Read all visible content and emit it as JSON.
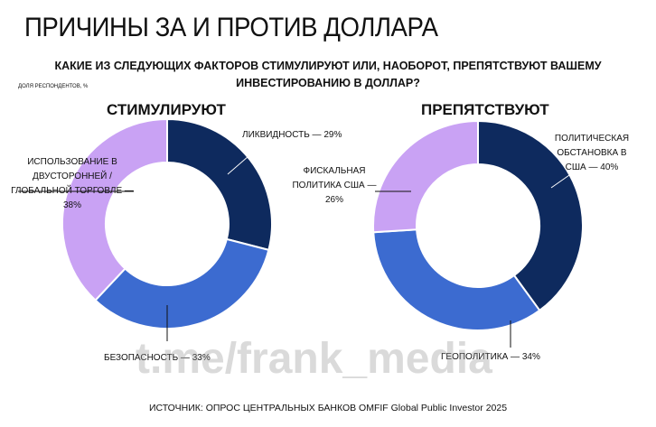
{
  "title": "ПРИЧИНЫ ЗА И ПРОТИВ ДОЛЛАРА",
  "question": "КАКИЕ ИЗ СЛЕДУЮЩИХ ФАКТОРОВ СТИМУЛИРУЮТ ИЛИ, НАОБОРОТ, ПРЕПЯТСТВУЮТ ВАШЕМУ ИНВЕСТИРОВАНИЮ В ДОЛЛАР?",
  "unit": "ДОЛЯ РЕСПОНДЕНТОВ, %",
  "watermark": "t.me/frank_media",
  "source": "ИСТОЧНИК: ОПРОС ЦЕНТРАЛЬНЫХ БАНКОВ OMFIF Global Public Investor 2025",
  "colors": {
    "dark": "#0e2a5e",
    "blue": "#3c6bd0",
    "lavender": "#c9a2f4"
  },
  "chart_data": [
    {
      "type": "pie",
      "title": "СТИМУЛИРУЮТ",
      "categories": [
        "ЛИКВИДНОСТЬ",
        "БЕЗОПАСНОСТЬ",
        "ИСПОЛЬЗОВАНИЕ В ДВУСТОРОННЕЙ / ГЛОБАЛЬНОЙ ТОРГОВЛЕ"
      ],
      "values": [
        29,
        33,
        38
      ],
      "labels": [
        "ЛИКВИДНОСТЬ — 29%",
        "БЕЗОПАСНОСТЬ — 33%",
        "ИСПОЛЬЗОВАНИЕ В ДВУСТОРОННЕЙ / ГЛОБАЛЬНОЙ ТОРГОВЛЕ — 38%"
      ]
    },
    {
      "type": "pie",
      "title": "ПРЕПЯТСТВУЮТ",
      "categories": [
        "ПОЛИТИЧЕСКАЯ ОБСТАНОВКА В США",
        "ГЕОПОЛИТИКА",
        "ФИСКАЛЬНАЯ ПОЛИТИКА США"
      ],
      "values": [
        40,
        34,
        26
      ],
      "labels": [
        "ПОЛИТИЧЕСКАЯ ОБСТАНОВКА В США — 40%",
        "ГЕОПОЛИТИКА — 34%",
        "ФИСКАЛЬНАЯ ПОЛИТИКА США — 26%"
      ]
    }
  ]
}
